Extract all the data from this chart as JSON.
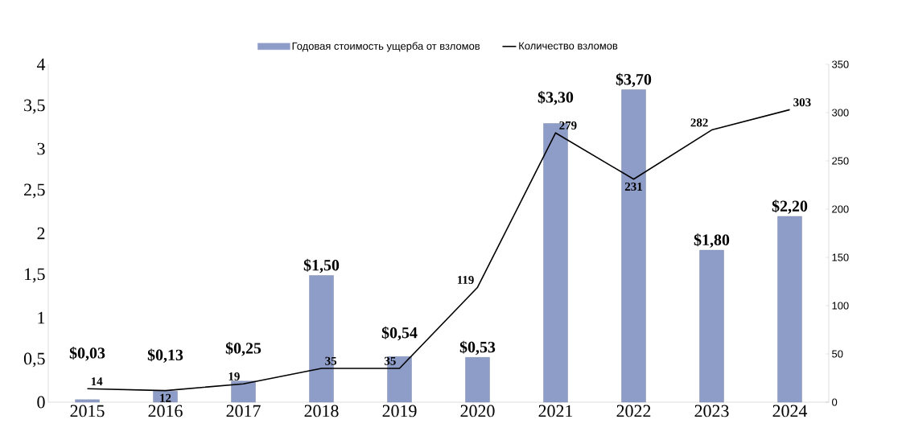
{
  "chart_data": {
    "type": "bar",
    "categories": [
      "2015",
      "2016",
      "2017",
      "2018",
      "2019",
      "2020",
      "2021",
      "2022",
      "2023",
      "2024"
    ],
    "series": [
      {
        "name": "Годовая стоимость ущерба от взломов",
        "color": "#8e9cc8",
        "values": [
          0.03,
          0.13,
          0.25,
          1.5,
          0.54,
          0.53,
          3.3,
          3.7,
          1.8,
          2.2
        ],
        "value_labels": [
          "$0,03",
          "$0,13",
          "$0,25",
          "$1,50",
          "$0,54",
          "$0,53",
          "$3,30",
          "$3,70",
          "$1,80",
          "$2,20"
        ]
      },
      {
        "name": "Количество взломов",
        "type": "line",
        "axis": "y2",
        "color": "#000000",
        "values": [
          14,
          12,
          19,
          35,
          35,
          119,
          279,
          231,
          282,
          303
        ],
        "value_labels": [
          "14",
          "12",
          "19",
          "35",
          "35",
          "119",
          "279",
          "231",
          "282",
          "303"
        ]
      }
    ],
    "ylim": [
      0,
      4
    ],
    "yticks": [
      0,
      {
        "value": 0.5,
        "label": "0,5"
      },
      1,
      {
        "value": 1.5,
        "label": "1,5"
      },
      2,
      {
        "value": 2.5,
        "label": "2,5"
      },
      3,
      {
        "value": 3.5,
        "label": "3,5"
      },
      4
    ],
    "y2lim": [
      0,
      350
    ],
    "y2ticks": [
      0,
      50,
      100,
      150,
      200,
      250,
      300,
      350
    ],
    "legend": "top",
    "grid": false,
    "marker": "none"
  }
}
